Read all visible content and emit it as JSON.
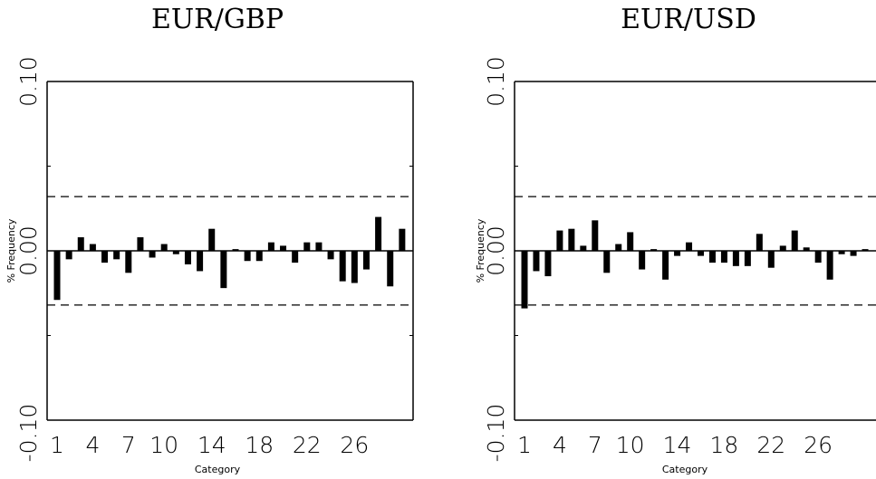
{
  "chart_data": [
    {
      "type": "bar",
      "title": "EUR/GBP",
      "xlabel": "Category",
      "ylabel": "% Frequency",
      "ylim": [
        -0.1,
        0.1
      ],
      "y_tick_labels": [
        "0.10",
        "0.00",
        "-0.10"
      ],
      "x_tick_labels": [
        "1",
        "4",
        "7",
        "10",
        "14",
        "18",
        "22",
        "26"
      ],
      "x_tick_values": [
        1,
        4,
        7,
        10,
        14,
        18,
        22,
        26
      ],
      "confidence_band": [
        0.032,
        -0.032
      ],
      "categories": [
        1,
        2,
        3,
        4,
        5,
        6,
        7,
        8,
        9,
        10,
        11,
        12,
        13,
        14,
        15,
        16,
        17,
        18,
        19,
        20,
        21,
        22,
        23,
        24,
        25,
        26,
        27,
        28,
        29,
        30
      ],
      "values": [
        -0.029,
        -0.005,
        0.008,
        0.004,
        -0.007,
        -0.005,
        -0.013,
        0.008,
        -0.004,
        0.004,
        -0.002,
        -0.008,
        -0.012,
        0.013,
        -0.022,
        0.001,
        -0.006,
        -0.006,
        0.005,
        0.003,
        -0.007,
        0.005,
        0.005,
        -0.005,
        -0.018,
        -0.019,
        -0.011,
        0.02,
        -0.021,
        0.013
      ]
    },
    {
      "type": "bar",
      "title": "EUR/USD",
      "xlabel": "Category",
      "ylabel": "% Frequency",
      "ylim": [
        -0.1,
        0.1
      ],
      "y_tick_labels": [
        "0.10",
        "0.00",
        "-0.10"
      ],
      "x_tick_labels": [
        "1",
        "4",
        "7",
        "10",
        "14",
        "18",
        "22",
        "26"
      ],
      "x_tick_values": [
        1,
        4,
        7,
        10,
        14,
        18,
        22,
        26
      ],
      "confidence_band": [
        0.032,
        -0.032
      ],
      "categories": [
        1,
        2,
        3,
        4,
        5,
        6,
        7,
        8,
        9,
        10,
        11,
        12,
        13,
        14,
        15,
        16,
        17,
        18,
        19,
        20,
        21,
        22,
        23,
        24,
        25,
        26,
        27,
        28,
        29,
        30
      ],
      "values": [
        -0.034,
        -0.012,
        -0.015,
        0.012,
        0.013,
        0.003,
        0.018,
        -0.013,
        0.004,
        0.011,
        -0.011,
        0.001,
        -0.017,
        -0.003,
        0.005,
        -0.003,
        -0.007,
        -0.007,
        -0.009,
        -0.009,
        0.01,
        -0.01,
        0.003,
        0.012,
        0.002,
        -0.007,
        -0.017,
        -0.002,
        -0.003,
        0.001
      ]
    }
  ]
}
